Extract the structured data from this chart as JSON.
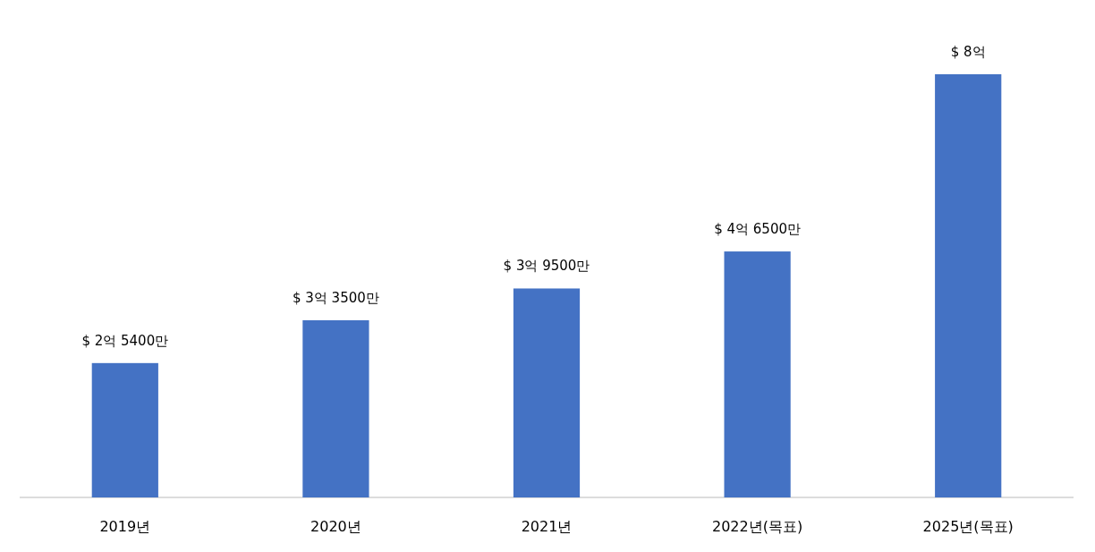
{
  "chart_data": {
    "type": "bar",
    "categories": [
      "2019년",
      "2020년",
      "2021년",
      "2022년(목표)",
      "2025년(목표)"
    ],
    "values": [
      2.54,
      3.35,
      3.95,
      4.65,
      8
    ],
    "value_labels": [
      "$ 2억 5400만",
      "$ 3억 3500만",
      "$ 3억 9500만",
      "$ 4억 6500만",
      "$ 8억"
    ],
    "color": "#4472c4"
  }
}
